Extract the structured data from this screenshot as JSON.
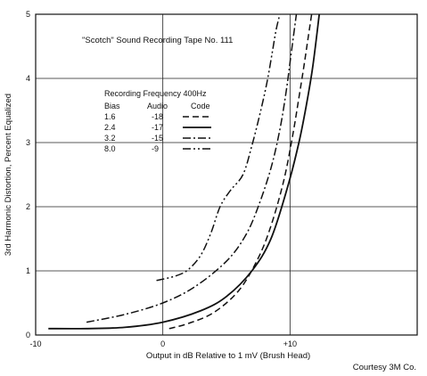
{
  "chart_data": {
    "type": "line",
    "title": "\"Scotch\" Sound Recording Tape No. 111",
    "xlabel": "Output in dB Relative to 1 mV (Brush Head)",
    "ylabel": "3rd Harmonic Distortion, Percent Equalized",
    "xlim": [
      -10,
      20
    ],
    "ylim": [
      0,
      5
    ],
    "x_ticks": [
      -10,
      0,
      10
    ],
    "x_tick_labels": [
      "-10",
      "0",
      "+10"
    ],
    "y_ticks": [
      0,
      1,
      2,
      3,
      4,
      5
    ],
    "y_tick_labels": [
      "0",
      "1",
      "2",
      "3",
      "4",
      "5"
    ],
    "grid": true,
    "legend": {
      "heading": "Recording Frequency 400Hz",
      "columns": [
        "Bias",
        "Audio",
        "Code"
      ],
      "placement": "upper-left"
    },
    "series": [
      {
        "bias": "1.6",
        "audio": "-18",
        "code": "dashed",
        "x": [
          0.5,
          2,
          4,
          6,
          7.5,
          8.5,
          9.5,
          10.2,
          10.7,
          11.1,
          11.4,
          11.7
        ],
        "y": [
          0.1,
          0.18,
          0.35,
          0.7,
          1.2,
          1.7,
          2.4,
          3.1,
          3.7,
          4.2,
          4.6,
          5.0
        ]
      },
      {
        "bias": "2.4",
        "audio": "-17",
        "code": "solid",
        "x": [
          -9,
          -6,
          -3,
          0,
          3,
          5,
          7,
          8.5,
          9.8,
          10.7,
          11.3,
          11.8,
          12.3
        ],
        "y": [
          0.1,
          0.1,
          0.12,
          0.2,
          0.38,
          0.6,
          1.0,
          1.5,
          2.3,
          3.0,
          3.6,
          4.2,
          5.0
        ]
      },
      {
        "bias": "3.2",
        "audio": "-15",
        "code": "dash-dot",
        "x": [
          -6,
          -3,
          0,
          2.5,
          5,
          6.5,
          7.5,
          8.5,
          9.2,
          9.7,
          10.1,
          10.5
        ],
        "y": [
          0.2,
          0.32,
          0.5,
          0.75,
          1.15,
          1.55,
          2.0,
          2.6,
          3.2,
          3.8,
          4.4,
          5.0
        ]
      },
      {
        "bias": "8.0",
        "audio": "-9",
        "code": "dash-dot-dot",
        "x": [
          -0.5,
          1,
          2,
          3,
          3.8,
          4.5,
          5.3,
          6.3,
          7,
          7.7,
          8.2,
          8.6,
          8.9,
          9.2
        ],
        "y": [
          0.85,
          0.92,
          1.02,
          1.25,
          1.6,
          2.0,
          2.25,
          2.5,
          2.95,
          3.5,
          3.95,
          4.4,
          4.75,
          5.0
        ]
      }
    ]
  },
  "footer": {
    "courtesy": "Courtesy 3M Co."
  }
}
